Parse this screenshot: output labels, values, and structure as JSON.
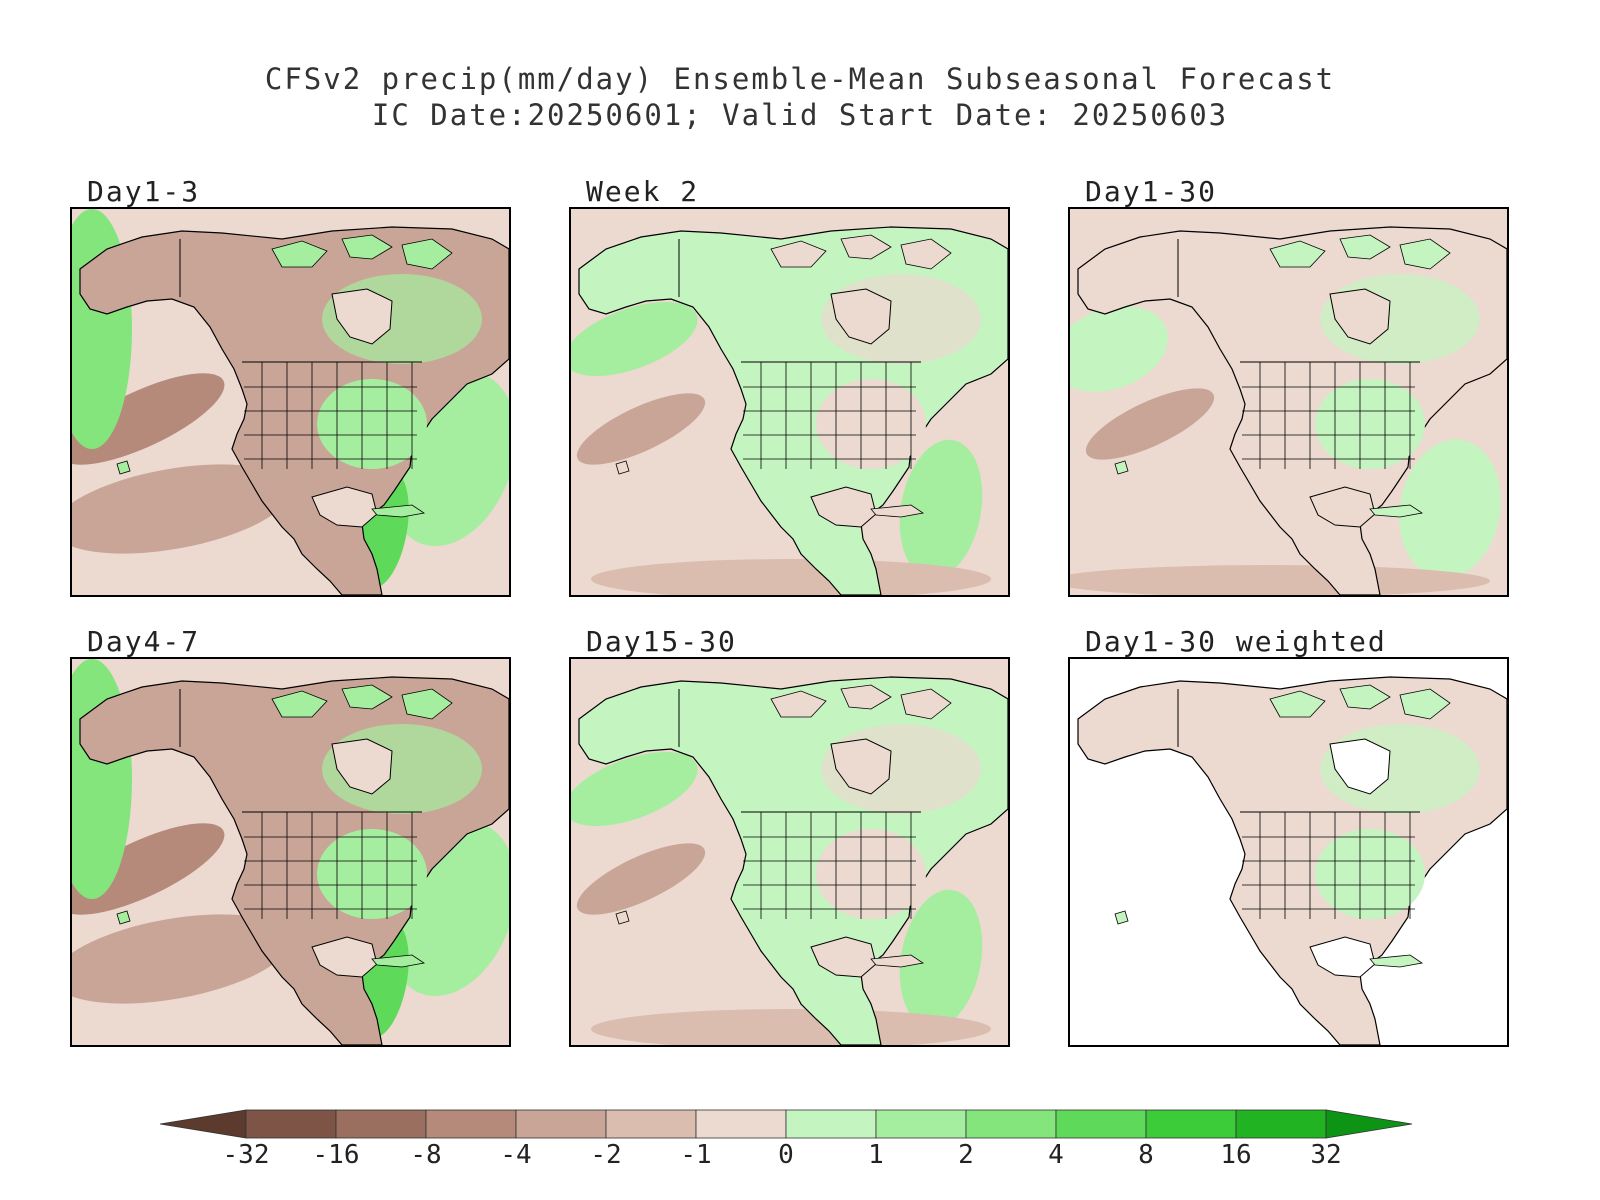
{
  "title": {
    "line1": "CFSv2 precip(mm/day) Ensemble-Mean Subseasonal Forecast",
    "line2": "IC Date:20250601; Valid Start Date: 20250603"
  },
  "panels": [
    {
      "label": "Day1-3",
      "style": "wet"
    },
    {
      "label": "Week 2",
      "style": "dry"
    },
    {
      "label": "Day1-30",
      "style": "mixed"
    },
    {
      "label": "Day4-7",
      "style": "wet"
    },
    {
      "label": "Day15-30",
      "style": "dry"
    },
    {
      "label": "Day1-30 weighted",
      "style": "land"
    }
  ],
  "colorbar": {
    "units": "mm/day",
    "ticks": [
      "-32",
      "-16",
      "-8",
      "-4",
      "-2",
      "-1",
      "0",
      "1",
      "2",
      "4",
      "8",
      "16",
      "32"
    ],
    "colors": [
      "#5c3b2e",
      "#7d5445",
      "#9b6f60",
      "#b58a7b",
      "#c9a597",
      "#dbbdb0",
      "#ecd9d0",
      "#c4f5c0",
      "#a5ee9f",
      "#84e57d",
      "#5fd95a",
      "#3ccc3a",
      "#21b321",
      "#0e9414"
    ]
  }
}
